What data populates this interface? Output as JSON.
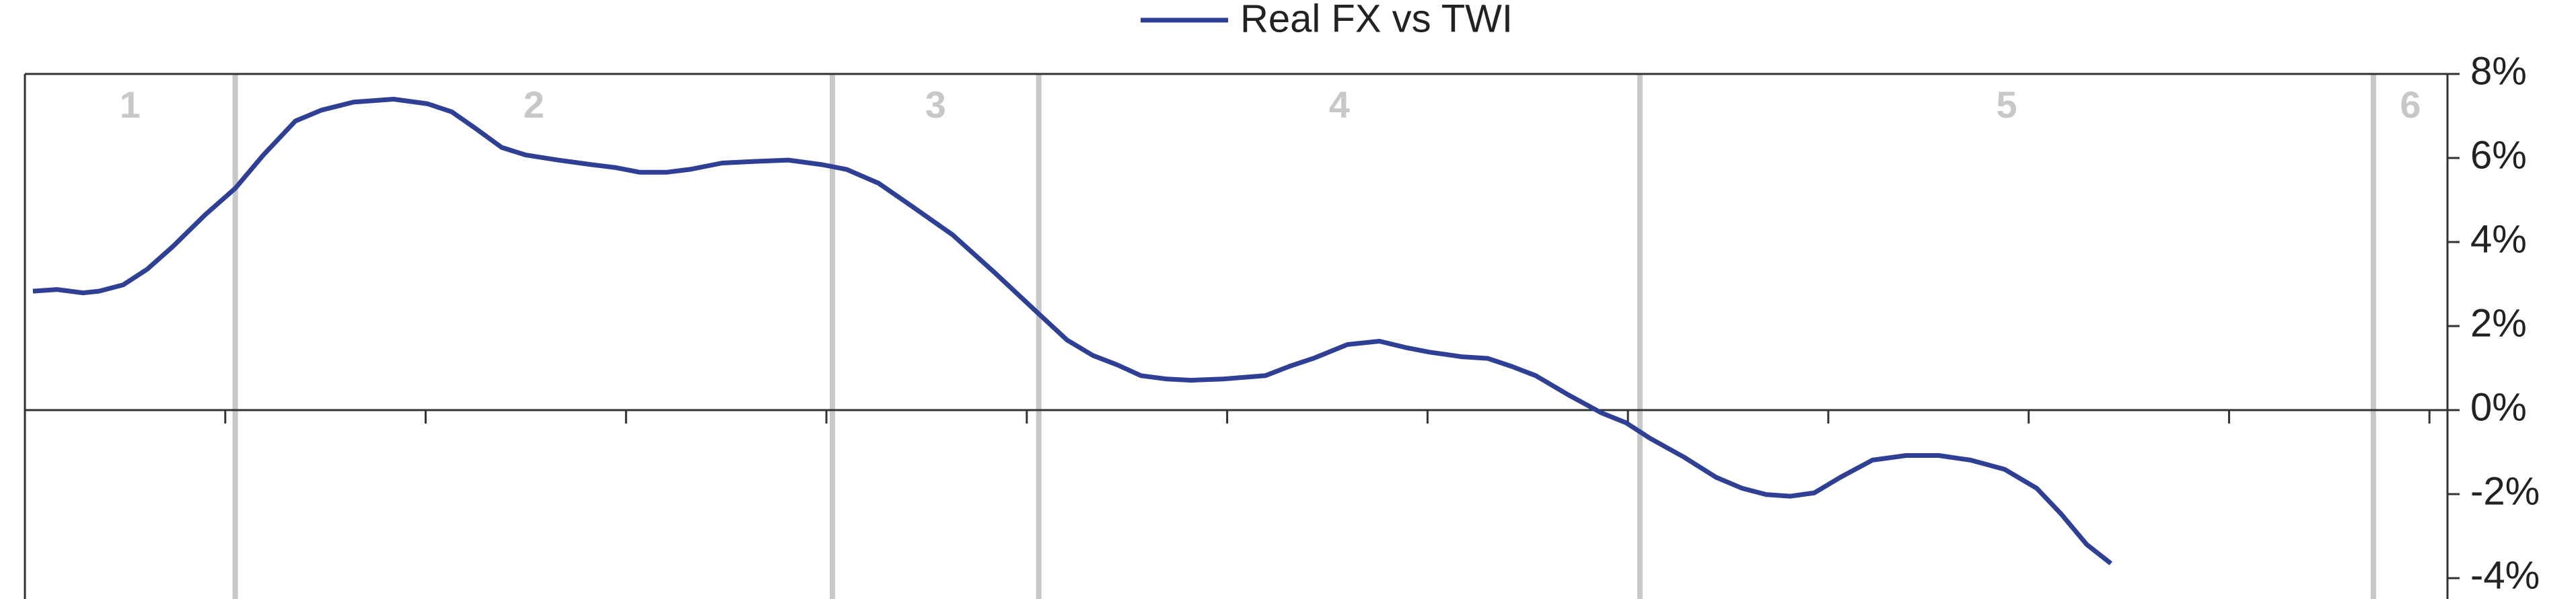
{
  "chart_data": {
    "type": "line",
    "x": [
      0.04,
      0.16,
      0.29,
      0.37,
      0.49,
      0.61,
      0.74,
      0.9,
      1.05,
      1.19,
      1.35,
      1.48,
      1.64,
      1.84,
      2.01,
      2.13,
      2.25,
      2.38,
      2.5,
      2.66,
      2.83,
      2.95,
      3.07,
      3.2,
      3.32,
      3.48,
      3.65,
      3.81,
      3.98,
      4.1,
      4.26,
      4.43,
      4.63,
      4.84,
      5.04,
      5.2,
      5.33,
      5.45,
      5.57,
      5.7,
      5.82,
      5.98,
      6.19,
      6.31,
      6.43,
      6.6,
      6.76,
      6.89,
      7.01,
      7.17,
      7.3,
      7.42,
      7.54,
      7.7,
      7.87,
      7.99,
      8.11,
      8.28,
      8.44,
      8.57,
      8.69,
      8.81,
      8.93,
      9.06,
      9.22,
      9.39,
      9.55,
      9.71,
      9.88,
      10.04,
      10.16,
      10.29,
      10.41
    ],
    "series": [
      {
        "name": "Real FX vs TWI",
        "color": "#2e3f94",
        "values": [
          2.83,
          2.87,
          2.79,
          2.83,
          2.98,
          3.35,
          3.9,
          4.65,
          5.28,
          6.07,
          6.88,
          7.14,
          7.33,
          7.4,
          7.29,
          7.1,
          6.7,
          6.25,
          6.07,
          5.95,
          5.84,
          5.77,
          5.66,
          5.66,
          5.73,
          5.88,
          5.92,
          5.95,
          5.84,
          5.73,
          5.4,
          4.84,
          4.17,
          3.27,
          2.38,
          1.67,
          1.3,
          1.08,
          0.82,
          0.74,
          0.71,
          0.74,
          0.82,
          1.04,
          1.23,
          1.56,
          1.64,
          1.49,
          1.38,
          1.27,
          1.23,
          1.04,
          0.82,
          0.37,
          -0.07,
          -0.3,
          -0.67,
          -1.12,
          -1.6,
          -1.86,
          -2.01,
          -2.05,
          -1.97,
          -1.6,
          -1.19,
          -1.08,
          -1.08,
          -1.19,
          -1.41,
          -1.86,
          -2.46,
          -3.2,
          -3.65
        ]
      }
    ],
    "xlim": [
      0,
      12.09
    ],
    "xticks": [
      1,
      2,
      3,
      4,
      5,
      6,
      7,
      8,
      9,
      10,
      11,
      12
    ],
    "ylim": [
      -4,
      8
    ],
    "yticks": [
      {
        "value": 8,
        "label": "8%"
      },
      {
        "value": 6,
        "label": "6%"
      },
      {
        "value": 4,
        "label": "4%"
      },
      {
        "value": 2,
        "label": "2%"
      },
      {
        "value": 0,
        "label": "0%"
      },
      {
        "value": -2,
        "label": "-2%"
      },
      {
        "value": -4,
        "label": "-4%"
      }
    ],
    "regions": {
      "labels": [
        "1",
        "2",
        "3",
        "4",
        "5",
        "6"
      ],
      "boundaries": [
        1.05,
        4.03,
        5.06,
        8.06,
        11.72
      ],
      "color": "#c8c8c8"
    },
    "legend": "top"
  }
}
